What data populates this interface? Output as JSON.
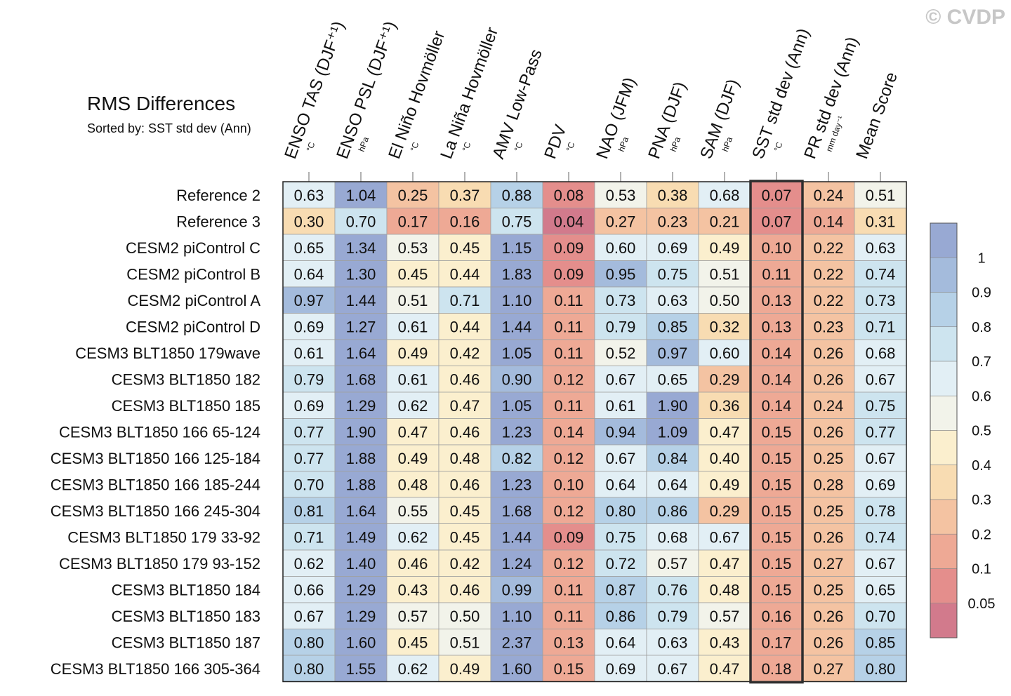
{
  "watermark": "© CVDP",
  "title": "RMS Differences",
  "subtitle": "Sorted by: SST std dev (Ann)",
  "chart_data": {
    "type": "heatmap",
    "columns": [
      {
        "name": "ENSO TAS (DJF⁺¹)",
        "unit": "°C"
      },
      {
        "name": "ENSO PSL (DJF⁺¹)",
        "unit": "hPa"
      },
      {
        "name": "El Niño Hovmöller",
        "unit": "°C"
      },
      {
        "name": "La Niña Hovmöller",
        "unit": "°C"
      },
      {
        "name": "AMV Low-Pass",
        "unit": "°C"
      },
      {
        "name": "PDV",
        "unit": "°C"
      },
      {
        "name": "NAO (JFM)",
        "unit": "hPa"
      },
      {
        "name": "PNA (DJF)",
        "unit": "hPa"
      },
      {
        "name": "SAM (DJF)",
        "unit": "hPa"
      },
      {
        "name": "SST std dev (Ann)",
        "unit": "°C"
      },
      {
        "name": "PR std dev (Ann)",
        "unit": "mm day⁻¹"
      },
      {
        "name": "Mean Score",
        "unit": ""
      }
    ],
    "rows": [
      {
        "label": "Reference 2",
        "values": [
          "0.63",
          "1.04",
          "0.25",
          "0.37",
          "0.88",
          "0.08",
          "0.53",
          "0.38",
          "0.68",
          "0.07",
          "0.24",
          "0.51"
        ]
      },
      {
        "label": "Reference 3",
        "values": [
          "0.30",
          "0.70",
          "0.17",
          "0.16",
          "0.75",
          "0.04",
          "0.27",
          "0.23",
          "0.21",
          "0.07",
          "0.14",
          "0.31"
        ]
      },
      {
        "label": "CESM2 piControl C",
        "values": [
          "0.65",
          "1.34",
          "0.53",
          "0.45",
          "1.15",
          "0.09",
          "0.60",
          "0.69",
          "0.49",
          "0.10",
          "0.22",
          "0.63"
        ]
      },
      {
        "label": "CESM2 piControl B",
        "values": [
          "0.64",
          "1.30",
          "0.45",
          "0.44",
          "1.83",
          "0.09",
          "0.95",
          "0.75",
          "0.51",
          "0.11",
          "0.22",
          "0.74"
        ]
      },
      {
        "label": "CESM2 piControl A",
        "values": [
          "0.97",
          "1.44",
          "0.51",
          "0.71",
          "1.10",
          "0.11",
          "0.73",
          "0.63",
          "0.50",
          "0.13",
          "0.22",
          "0.73"
        ]
      },
      {
        "label": "CESM2 piControl D",
        "values": [
          "0.69",
          "1.27",
          "0.61",
          "0.44",
          "1.44",
          "0.11",
          "0.79",
          "0.85",
          "0.32",
          "0.13",
          "0.23",
          "0.71"
        ]
      },
      {
        "label": "CESM3 BLT1850 179wave",
        "values": [
          "0.61",
          "1.64",
          "0.49",
          "0.42",
          "1.05",
          "0.11",
          "0.52",
          "0.97",
          "0.60",
          "0.14",
          "0.26",
          "0.68"
        ]
      },
      {
        "label": "CESM3 BLT1850 182",
        "values": [
          "0.79",
          "1.68",
          "0.61",
          "0.46",
          "0.90",
          "0.12",
          "0.67",
          "0.65",
          "0.29",
          "0.14",
          "0.26",
          "0.67"
        ]
      },
      {
        "label": "CESM3 BLT1850 185",
        "values": [
          "0.69",
          "1.29",
          "0.62",
          "0.47",
          "1.05",
          "0.11",
          "0.61",
          "1.90",
          "0.36",
          "0.14",
          "0.24",
          "0.75"
        ]
      },
      {
        "label": "CESM3 BLT1850 166 65-124",
        "values": [
          "0.77",
          "1.90",
          "0.47",
          "0.46",
          "1.23",
          "0.14",
          "0.94",
          "1.09",
          "0.47",
          "0.15",
          "0.26",
          "0.77"
        ]
      },
      {
        "label": "CESM3 BLT1850 166 125-184",
        "values": [
          "0.77",
          "1.88",
          "0.49",
          "0.48",
          "0.82",
          "0.12",
          "0.67",
          "0.84",
          "0.40",
          "0.15",
          "0.25",
          "0.67"
        ]
      },
      {
        "label": "CESM3 BLT1850 166 185-244",
        "values": [
          "0.70",
          "1.88",
          "0.48",
          "0.46",
          "1.23",
          "0.10",
          "0.64",
          "0.64",
          "0.49",
          "0.15",
          "0.28",
          "0.69"
        ]
      },
      {
        "label": "CESM3 BLT1850 166 245-304",
        "values": [
          "0.81",
          "1.64",
          "0.55",
          "0.45",
          "1.68",
          "0.12",
          "0.80",
          "0.86",
          "0.29",
          "0.15",
          "0.25",
          "0.78"
        ]
      },
      {
        "label": "CESM3 BLT1850 179 33-92",
        "values": [
          "0.71",
          "1.49",
          "0.62",
          "0.45",
          "1.44",
          "0.09",
          "0.75",
          "0.68",
          "0.67",
          "0.15",
          "0.26",
          "0.74"
        ]
      },
      {
        "label": "CESM3 BLT1850 179 93-152",
        "values": [
          "0.62",
          "1.40",
          "0.46",
          "0.42",
          "1.24",
          "0.12",
          "0.72",
          "0.57",
          "0.47",
          "0.15",
          "0.27",
          "0.67"
        ]
      },
      {
        "label": "CESM3 BLT1850 184",
        "values": [
          "0.66",
          "1.29",
          "0.43",
          "0.46",
          "0.99",
          "0.11",
          "0.87",
          "0.76",
          "0.48",
          "0.15",
          "0.25",
          "0.65"
        ]
      },
      {
        "label": "CESM3 BLT1850 183",
        "values": [
          "0.67",
          "1.29",
          "0.57",
          "0.50",
          "1.10",
          "0.11",
          "0.86",
          "0.79",
          "0.57",
          "0.16",
          "0.26",
          "0.70"
        ]
      },
      {
        "label": "CESM3 BLT1850 187",
        "values": [
          "0.80",
          "1.60",
          "0.45",
          "0.51",
          "2.37",
          "0.13",
          "0.64",
          "0.63",
          "0.43",
          "0.17",
          "0.26",
          "0.85"
        ]
      },
      {
        "label": "CESM3 BLT1850 166 305-364",
        "values": [
          "0.80",
          "1.55",
          "0.62",
          "0.49",
          "1.60",
          "0.15",
          "0.69",
          "0.67",
          "0.47",
          "0.18",
          "0.27",
          "0.80"
        ]
      }
    ],
    "highlight_column": "SST std dev (Ann)",
    "colorbar": {
      "bounds": [
        0.05,
        0.1,
        0.2,
        0.3,
        0.4,
        0.5,
        0.6,
        0.7,
        0.8,
        0.9,
        1
      ],
      "labels": [
        "1",
        "0.9",
        "0.8",
        "0.7",
        "0.6",
        "0.5",
        "0.4",
        "0.3",
        "0.2",
        "0.1",
        "0.05"
      ],
      "colors": [
        "#d27a8c",
        "#e48e8c",
        "#eea995",
        "#f4c3a2",
        "#f8dcb2",
        "#fbefce",
        "#f2f3ea",
        "#e2eff5",
        "#cde4ef",
        "#b6d1e7",
        "#a4bbdc",
        "#98a9d3"
      ]
    }
  }
}
